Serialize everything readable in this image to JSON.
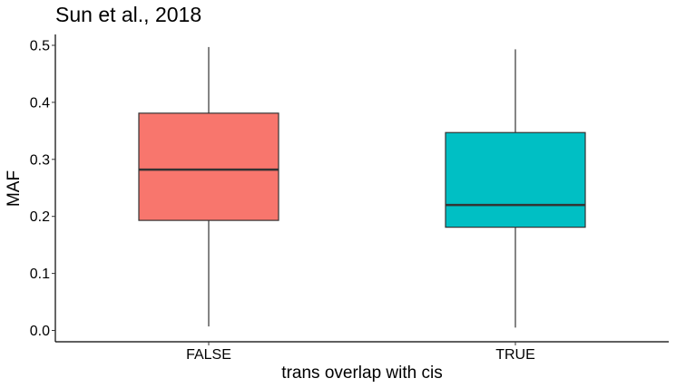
{
  "chart_data": {
    "type": "box",
    "title": "Sun et al., 2018",
    "xlabel": "trans overlap with cis",
    "ylabel": "MAF",
    "categories": [
      "FALSE",
      "TRUE"
    ],
    "boxes": [
      {
        "category": "FALSE",
        "min": 0.007,
        "q1": 0.193,
        "median": 0.282,
        "q3": 0.381,
        "max": 0.497,
        "color": "#F8766D"
      },
      {
        "category": "TRUE",
        "min": 0.005,
        "q1": 0.181,
        "median": 0.22,
        "q3": 0.347,
        "max": 0.493,
        "color": "#00BFC4"
      }
    ],
    "yticks": [
      "0.0",
      "0.1",
      "0.2",
      "0.3",
      "0.4",
      "0.5"
    ],
    "ylim": [
      -0.018,
      0.52
    ],
    "grid": false,
    "legend": "none"
  }
}
